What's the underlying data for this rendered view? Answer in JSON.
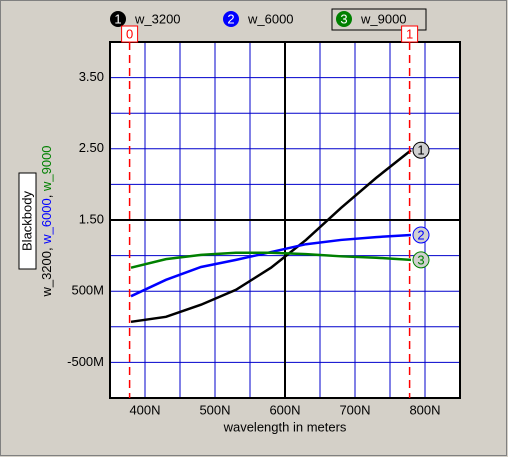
{
  "chart_data": {
    "type": "line",
    "x_label": "wavelength in meters",
    "y_label": "Blackbody",
    "y_label_parts": [
      {
        "text": "w_3200",
        "color": "#000000"
      },
      {
        "text": ", ",
        "color": "#000000"
      },
      {
        "text": "w_6000",
        "color": "#0000ff"
      },
      {
        "text": ", ",
        "color": "#000000"
      },
      {
        "text": "w_9000",
        "color": "#008000"
      }
    ],
    "x": [
      3.8e-07,
      4.3e-07,
      4.8e-07,
      5.3e-07,
      5.8e-07,
      6.3e-07,
      6.8e-07,
      7.3e-07,
      7.8e-07
    ],
    "series": [
      {
        "name": "w_3200",
        "marker": "1",
        "color": "#000000",
        "values": [
          0.07,
          0.14,
          0.31,
          0.52,
          0.83,
          1.22,
          1.67,
          2.09,
          2.48
        ]
      },
      {
        "name": "w_6000",
        "marker": "2",
        "color": "#0000ff",
        "values": [
          0.43,
          0.66,
          0.84,
          0.94,
          1.05,
          1.16,
          1.22,
          1.26,
          1.29
        ]
      },
      {
        "name": "w_9000",
        "marker": "3",
        "color": "#008000",
        "values": [
          0.83,
          0.95,
          1.01,
          1.04,
          1.04,
          1.02,
          0.99,
          0.97,
          0.94
        ]
      }
    ],
    "xlim": [
      3.5e-07,
      8.5e-07
    ],
    "ylim": [
      -1,
      4
    ],
    "xticks": [
      {
        "value": 4e-07,
        "label": "400N"
      },
      {
        "value": 5e-07,
        "label": "500N"
      },
      {
        "value": 6e-07,
        "label": "600N"
      },
      {
        "value": 7e-07,
        "label": "700N"
      },
      {
        "value": 8e-07,
        "label": "800N"
      }
    ],
    "yticks": [
      {
        "value": 3.5,
        "label": "3.50"
      },
      {
        "value": 2.5,
        "label": "2.50"
      },
      {
        "value": 1.5,
        "label": "1.50"
      },
      {
        "value": 0.5,
        "label": "500M"
      },
      {
        "value": -0.5,
        "label": "-500M"
      }
    ],
    "minor_xticks": [
      3.5e-07,
      4.5e-07,
      5.5e-07,
      6.5e-07,
      7.5e-07,
      8.5e-07
    ],
    "minor_yticks": [
      -1,
      0,
      1,
      2,
      3,
      4
    ],
    "x_axis_at": 1.5,
    "y_axis_at": 6e-07,
    "grid": true,
    "grid_color": "#0000cc",
    "cursors": [
      {
        "label": "0",
        "x": 3.78e-07
      },
      {
        "label": "1",
        "x": 7.78e-07
      }
    ],
    "cursor_color": "#ff0000",
    "legend": "top"
  }
}
